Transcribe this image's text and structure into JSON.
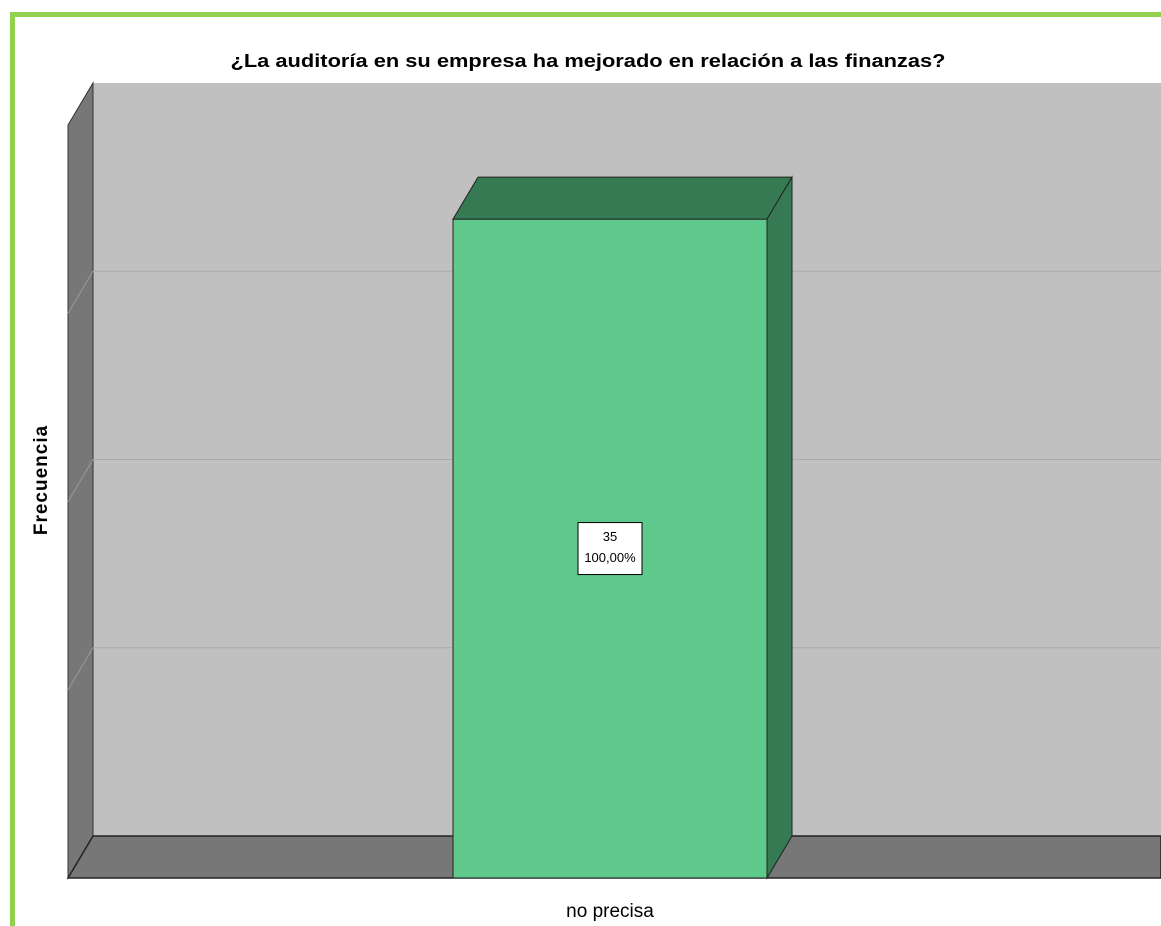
{
  "chart_data": {
    "type": "bar3d",
    "title": "¿La auditoría en su empresa ha mejorado en relación a las finanzas?",
    "y_label": "Frecuencia",
    "categories": [
      "no precisa"
    ],
    "values": [
      35
    ],
    "percents": [
      100
    ],
    "percent_labels": [
      "100,00%"
    ],
    "color": "#5ec98b",
    "ylim": [
      0,
      40
    ],
    "yticks": [
      0,
      10,
      20,
      30
    ],
    "grid": true
  }
}
